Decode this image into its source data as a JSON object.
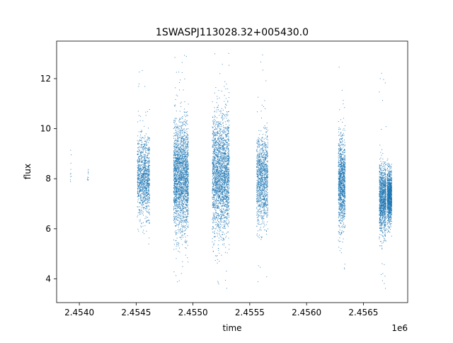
{
  "chart_data": {
    "type": "scatter",
    "title": "1SWASPJ113028.32+005430.0",
    "xlabel": "time",
    "ylabel": "flux",
    "x_offset_label": "1e6",
    "xlim": [
      2.4538,
      2.45689
    ],
    "ylim": [
      3.05,
      13.5
    ],
    "x_ticks": [
      2.454,
      2.4545,
      2.455,
      2.4555,
      2.456,
      2.4565
    ],
    "x_tick_labels": [
      "2.4540",
      "2.4545",
      "2.4550",
      "2.4555",
      "2.4560",
      "2.4565"
    ],
    "y_ticks": [
      4,
      6,
      8,
      10,
      12
    ],
    "y_tick_labels": [
      "4",
      "6",
      "8",
      "10",
      "12"
    ],
    "grid": false,
    "marker_color": "#1f77b4",
    "series": [
      {
        "clusters": [
          {
            "x": [
              2.45392,
              2.45393
            ],
            "y_center": 8.4,
            "y_spread": 0.55,
            "y_min": 7.8,
            "y_max": 9.2,
            "density": "sparse"
          },
          {
            "x": [
              2.45407,
              2.45408
            ],
            "y_center": 8.2,
            "y_spread": 0.3,
            "y_min": 7.9,
            "y_max": 8.6,
            "density": "sparse"
          },
          {
            "x": [
              2.45451,
              2.45462
            ],
            "y_center": 8.1,
            "y_spread": 0.8,
            "y_min": 5.3,
            "y_max": 12.6,
            "density": "medium"
          },
          {
            "x": [
              2.45483,
              2.45496
            ],
            "y_center": 8.1,
            "y_spread": 1.1,
            "y_min": 3.6,
            "y_max": 13.0,
            "density": "dense"
          },
          {
            "x": [
              2.45517,
              2.45532
            ],
            "y_center": 8.2,
            "y_spread": 1.2,
            "y_min": 3.5,
            "y_max": 13.1,
            "density": "dense"
          },
          {
            "x": [
              2.45556,
              2.45566
            ],
            "y_center": 8.0,
            "y_spread": 0.9,
            "y_min": 3.8,
            "y_max": 13.1,
            "density": "medium"
          },
          {
            "x": [
              2.45628,
              2.45634
            ],
            "y_center": 7.8,
            "y_spread": 0.9,
            "y_min": 4.1,
            "y_max": 12.5,
            "density": "medium"
          },
          {
            "x": [
              2.45664,
              2.4567
            ],
            "y_center": 7.2,
            "y_spread": 0.7,
            "y_min": 3.5,
            "y_max": 12.6,
            "density": "medium"
          },
          {
            "x": [
              2.45671,
              2.45675
            ],
            "y_center": 7.3,
            "y_spread": 0.5,
            "y_min": 5.6,
            "y_max": 8.8,
            "density": "medium"
          }
        ]
      }
    ]
  }
}
